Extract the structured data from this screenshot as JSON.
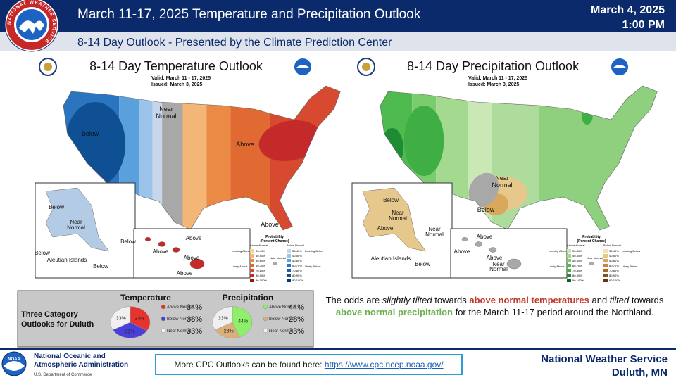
{
  "header": {
    "title": "March 11-17, 2025 Temperature  and Precipitation Outlook",
    "date": "March 4, 2025",
    "time": "1:00 PM",
    "subtitle": "8-14 Day Outlook - Presented by the Climate Prediction Center",
    "logo_text": "NATIONAL WEATHER SERVICE"
  },
  "temperature_map": {
    "title": "8-14 Day Temperature Outlook",
    "valid": "Valid:  March 11 - 17, 2025",
    "issued": "Issued:  March 3, 2025",
    "labels": [
      "Below",
      "Near",
      "Normal",
      "Above",
      "Above",
      "Below",
      "Near",
      "Normal",
      "Below",
      "Below",
      "Aleutian Islands",
      "Below",
      "Above",
      "Above",
      "Above",
      "Above"
    ]
  },
  "precipitation_map": {
    "title": "8-14 Day Precipitation Outlook",
    "valid": "Valid:  March 11 - 17, 2025",
    "issued": "Issued:  March 3, 2025",
    "labels": [
      "Near",
      "Normal",
      "Below",
      "Below",
      "Near",
      "Normal",
      "Above",
      "Near",
      "Normal",
      "Aleutian Islands",
      "Below",
      "Above",
      "Above",
      "Above",
      "Near",
      "Normal"
    ]
  },
  "legend": {
    "title": "Probability",
    "subtitle": "(Percent Chance)",
    "above": "Above Normal",
    "below": "Below Normal",
    "near": "Near Normal",
    "leaning_above": "Leaning Above",
    "likely_above": "Likely Above",
    "leaning_below": "Leaning Below",
    "likely_below": "Likely Below",
    "ranges": [
      "33-40%",
      "40-50%",
      "50-60%",
      "60-70%",
      "70-80%",
      "80-90%",
      "90-100%"
    ]
  },
  "duluth_box": {
    "title": "Three Category Outlooks for Duluth"
  },
  "chart_data": [
    {
      "type": "pie",
      "title": "Temperature",
      "categories": [
        "Above Normal",
        "Below Normal",
        "Near Normal"
      ],
      "values": [
        34,
        33,
        33
      ],
      "value_labels": [
        "34%",
        "33%",
        "33%"
      ],
      "colors": [
        "#e8322e",
        "#4b3fd9",
        "#f0f0f0"
      ]
    },
    {
      "type": "pie",
      "title": "Precipitation",
      "categories": [
        "Above Normal",
        "Below Normal",
        "Near Normal"
      ],
      "values": [
        44,
        23,
        33
      ],
      "value_labels": [
        "44%",
        "23%",
        "33%"
      ],
      "colors": [
        "#8ef06a",
        "#d9b07a",
        "#f0f0f0"
      ]
    }
  ],
  "paragraph": [
    "The odds are ",
    "slightly tilted",
    " towards ",
    "above normal temperatures",
    " and ",
    "tilted",
    " towards ",
    "above normal precipitation",
    " for the March 11-17 period around the Northland."
  ],
  "footer": {
    "noaa_name": "National Oceanic and Atmospheric Administration",
    "noaa_dept": "U.S. Department of Commerce",
    "noaa_logo": "NOAA",
    "link_text": "More CPC Outlooks can be found here: ",
    "link_url": "https://www.cpc.ncep.noaa.gov/",
    "office": "National Weather Service",
    "location": "Duluth, MN"
  }
}
